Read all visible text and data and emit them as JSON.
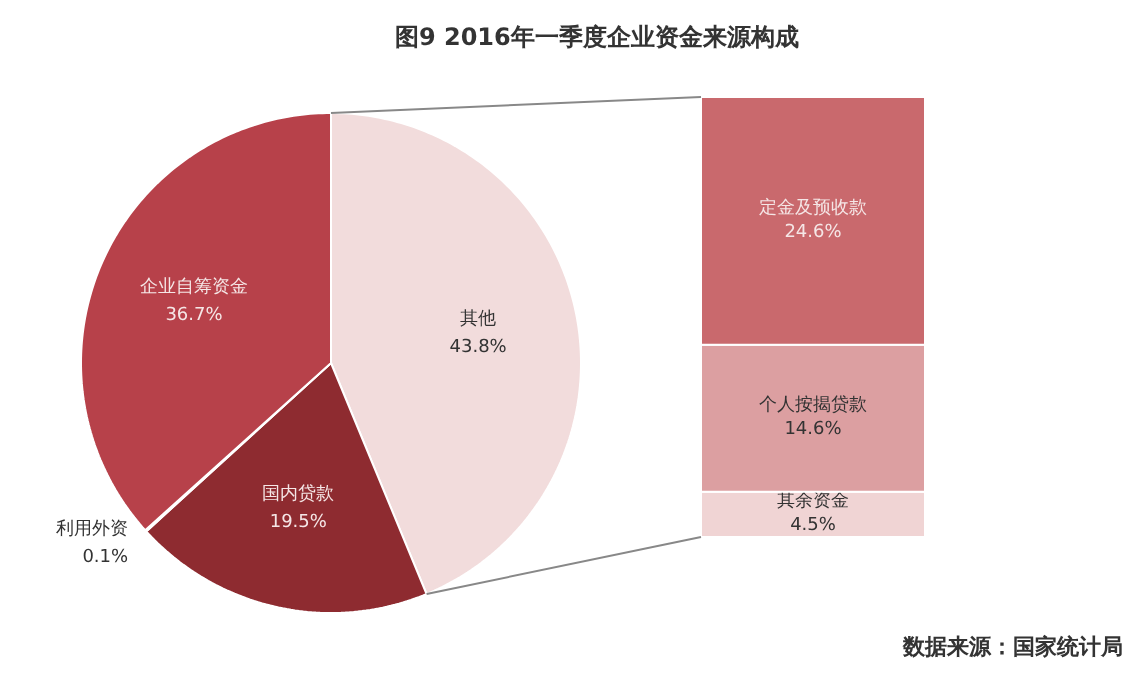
{
  "chart_data": [
    {
      "type": "pie",
      "title": "图9  2016年一季度企业资金来源构成",
      "categories": [
        "其他",
        "国内贷款",
        "利用外资",
        "企业自筹资金"
      ],
      "values": [
        43.8,
        19.5,
        0.1,
        36.7
      ],
      "colors": [
        "#f2dcdc",
        "#8e2b30",
        "#c0504d",
        "#b7414a"
      ],
      "value_labels": [
        "43.8%",
        "19.5%",
        "0.1%",
        "36.7%"
      ],
      "annotations": [
        "数据来源：国家统计局"
      ]
    },
    {
      "type": "bar",
      "stacked": true,
      "categories": [
        null
      ],
      "series": [
        {
          "name": "其余资金",
          "color": "#f0d4d4",
          "values": [
            4.5
          ],
          "value_labels": [
            "4.5%"
          ]
        },
        {
          "name": "个人按揭贷款",
          "color": "#dc9fa1",
          "values": [
            14.6
          ],
          "value_labels": [
            "14.6%"
          ]
        },
        {
          "name": "定金及预收款",
          "color": "#c9696d",
          "values": [
            24.6
          ],
          "value_labels": [
            "24.6%"
          ]
        }
      ]
    }
  ]
}
